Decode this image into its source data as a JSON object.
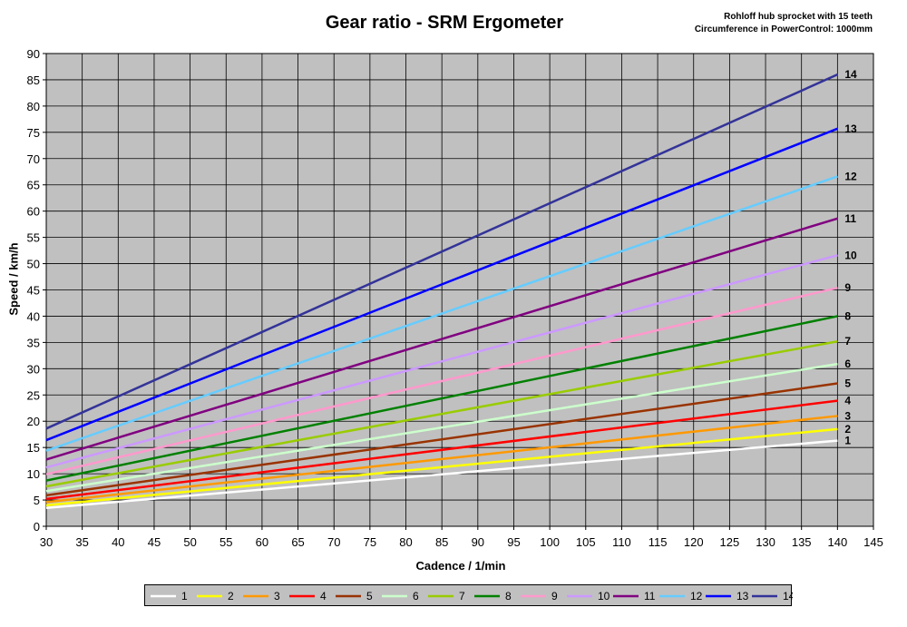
{
  "chart_data": {
    "type": "line",
    "title": "Gear ratio - SRM Ergometer",
    "notes": [
      "Rohloff hub sprocket with 15 teeth",
      "Circumference in PowerControl: 1000mm"
    ],
    "xlabel": "Cadence / 1/min",
    "ylabel": "Speed / km/h",
    "xlim": [
      30,
      145
    ],
    "ylim": [
      0,
      90
    ],
    "x_ticks": [
      30,
      35,
      40,
      45,
      50,
      55,
      60,
      65,
      70,
      75,
      80,
      85,
      90,
      95,
      100,
      105,
      110,
      115,
      120,
      125,
      130,
      135,
      140,
      145
    ],
    "y_ticks": [
      0,
      5,
      10,
      15,
      20,
      25,
      30,
      35,
      40,
      45,
      50,
      55,
      60,
      65,
      70,
      75,
      80,
      85,
      90
    ],
    "grid": true,
    "plot_background": "#c0c0c0",
    "legend_position": "bottom",
    "series": [
      {
        "name": "1",
        "color": "#ffffff",
        "x": [
          30,
          140
        ],
        "y": [
          3.5,
          16.3
        ]
      },
      {
        "name": "2",
        "color": "#ffff00",
        "x": [
          30,
          140
        ],
        "y": [
          4.0,
          18.5
        ]
      },
      {
        "name": "3",
        "color": "#ff9900",
        "x": [
          30,
          140
        ],
        "y": [
          4.6,
          21.0
        ]
      },
      {
        "name": "4",
        "color": "#ff0000",
        "x": [
          30,
          140
        ],
        "y": [
          5.2,
          23.9
        ]
      },
      {
        "name": "5",
        "color": "#993300",
        "x": [
          30,
          140
        ],
        "y": [
          5.9,
          27.2
        ]
      },
      {
        "name": "6",
        "color": "#ccffcc",
        "x": [
          30,
          140
        ],
        "y": [
          6.7,
          30.9
        ]
      },
      {
        "name": "7",
        "color": "#99cc00",
        "x": [
          30,
          140
        ],
        "y": [
          7.6,
          35.2
        ]
      },
      {
        "name": "8",
        "color": "#008000",
        "x": [
          30,
          140
        ],
        "y": [
          8.7,
          40.0
        ]
      },
      {
        "name": "9",
        "color": "#ff99cc",
        "x": [
          30,
          140
        ],
        "y": [
          9.9,
          45.4
        ]
      },
      {
        "name": "10",
        "color": "#cc99ff",
        "x": [
          30,
          140
        ],
        "y": [
          11.2,
          51.6
        ]
      },
      {
        "name": "11",
        "color": "#800080",
        "x": [
          30,
          140
        ],
        "y": [
          12.7,
          58.6
        ]
      },
      {
        "name": "12",
        "color": "#66ccff",
        "x": [
          30,
          140
        ],
        "y": [
          14.4,
          66.6
        ]
      },
      {
        "name": "13",
        "color": "#0000ff",
        "x": [
          30,
          140
        ],
        "y": [
          16.4,
          75.7
        ]
      },
      {
        "name": "14",
        "color": "#333399",
        "x": [
          30,
          140
        ],
        "y": [
          18.6,
          86.0
        ]
      }
    ]
  }
}
